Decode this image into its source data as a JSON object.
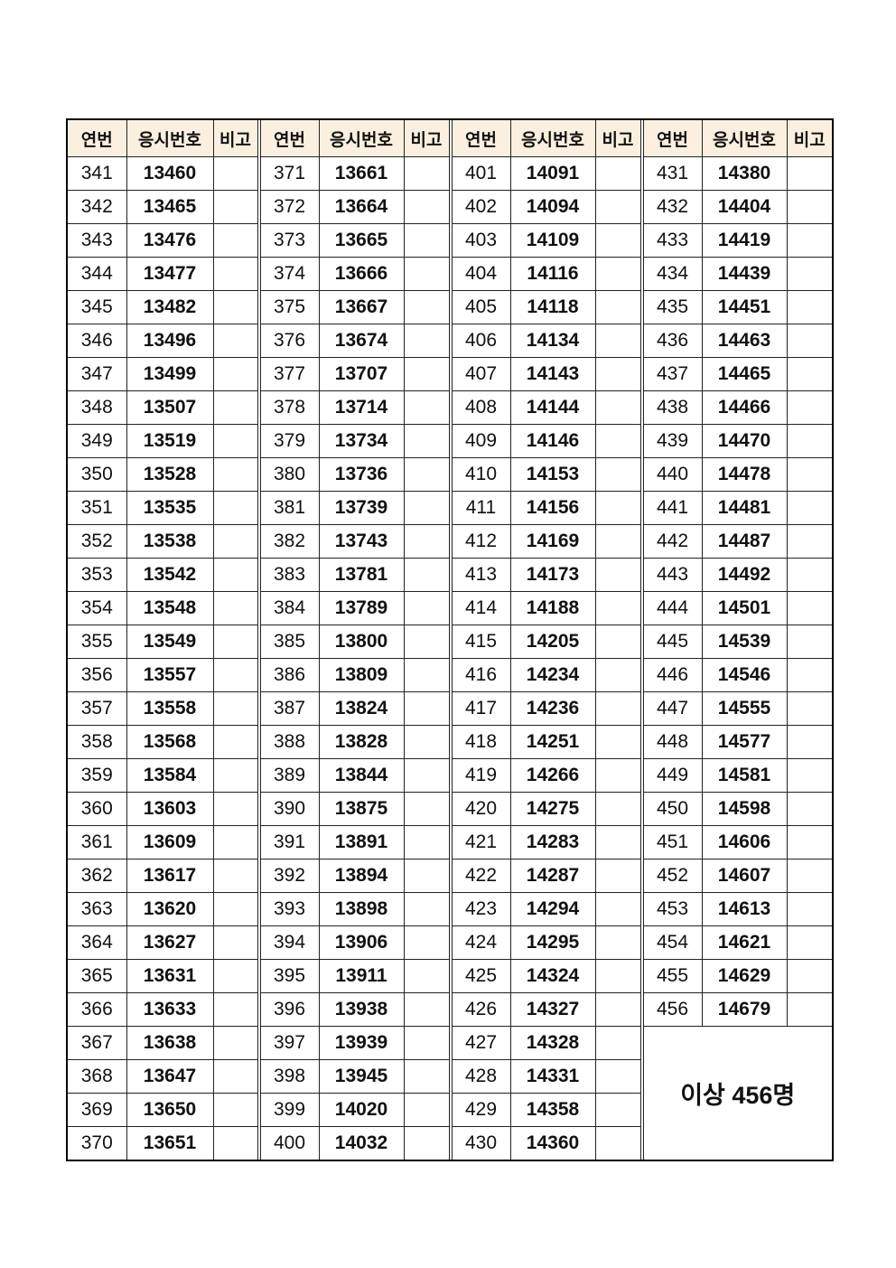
{
  "headers": {
    "seq": "연번",
    "exam_no": "응시번호",
    "note": "비고"
  },
  "groups": [
    {
      "rows": [
        [
          "341",
          "13460"
        ],
        [
          "342",
          "13465"
        ],
        [
          "343",
          "13476"
        ],
        [
          "344",
          "13477"
        ],
        [
          "345",
          "13482"
        ],
        [
          "346",
          "13496"
        ],
        [
          "347",
          "13499"
        ],
        [
          "348",
          "13507"
        ],
        [
          "349",
          "13519"
        ],
        [
          "350",
          "13528"
        ],
        [
          "351",
          "13535"
        ],
        [
          "352",
          "13538"
        ],
        [
          "353",
          "13542"
        ],
        [
          "354",
          "13548"
        ],
        [
          "355",
          "13549"
        ],
        [
          "356",
          "13557"
        ],
        [
          "357",
          "13558"
        ],
        [
          "358",
          "13568"
        ],
        [
          "359",
          "13584"
        ],
        [
          "360",
          "13603"
        ],
        [
          "361",
          "13609"
        ],
        [
          "362",
          "13617"
        ],
        [
          "363",
          "13620"
        ],
        [
          "364",
          "13627"
        ],
        [
          "365",
          "13631"
        ],
        [
          "366",
          "13633"
        ],
        [
          "367",
          "13638"
        ],
        [
          "368",
          "13647"
        ],
        [
          "369",
          "13650"
        ],
        [
          "370",
          "13651"
        ]
      ]
    },
    {
      "rows": [
        [
          "371",
          "13661"
        ],
        [
          "372",
          "13664"
        ],
        [
          "373",
          "13665"
        ],
        [
          "374",
          "13666"
        ],
        [
          "375",
          "13667"
        ],
        [
          "376",
          "13674"
        ],
        [
          "377",
          "13707"
        ],
        [
          "378",
          "13714"
        ],
        [
          "379",
          "13734"
        ],
        [
          "380",
          "13736"
        ],
        [
          "381",
          "13739"
        ],
        [
          "382",
          "13743"
        ],
        [
          "383",
          "13781"
        ],
        [
          "384",
          "13789"
        ],
        [
          "385",
          "13800"
        ],
        [
          "386",
          "13809"
        ],
        [
          "387",
          "13824"
        ],
        [
          "388",
          "13828"
        ],
        [
          "389",
          "13844"
        ],
        [
          "390",
          "13875"
        ],
        [
          "391",
          "13891"
        ],
        [
          "392",
          "13894"
        ],
        [
          "393",
          "13898"
        ],
        [
          "394",
          "13906"
        ],
        [
          "395",
          "13911"
        ],
        [
          "396",
          "13938"
        ],
        [
          "397",
          "13939"
        ],
        [
          "398",
          "13945"
        ],
        [
          "399",
          "14020"
        ],
        [
          "400",
          "14032"
        ]
      ]
    },
    {
      "rows": [
        [
          "401",
          "14091"
        ],
        [
          "402",
          "14094"
        ],
        [
          "403",
          "14109"
        ],
        [
          "404",
          "14116"
        ],
        [
          "405",
          "14118"
        ],
        [
          "406",
          "14134"
        ],
        [
          "407",
          "14143"
        ],
        [
          "408",
          "14144"
        ],
        [
          "409",
          "14146"
        ],
        [
          "410",
          "14153"
        ],
        [
          "411",
          "14156"
        ],
        [
          "412",
          "14169"
        ],
        [
          "413",
          "14173"
        ],
        [
          "414",
          "14188"
        ],
        [
          "415",
          "14205"
        ],
        [
          "416",
          "14234"
        ],
        [
          "417",
          "14236"
        ],
        [
          "418",
          "14251"
        ],
        [
          "419",
          "14266"
        ],
        [
          "420",
          "14275"
        ],
        [
          "421",
          "14283"
        ],
        [
          "422",
          "14287"
        ],
        [
          "423",
          "14294"
        ],
        [
          "424",
          "14295"
        ],
        [
          "425",
          "14324"
        ],
        [
          "426",
          "14327"
        ],
        [
          "427",
          "14328"
        ],
        [
          "428",
          "14331"
        ],
        [
          "429",
          "14358"
        ],
        [
          "430",
          "14360"
        ]
      ]
    },
    {
      "rows": [
        [
          "431",
          "14380"
        ],
        [
          "432",
          "14404"
        ],
        [
          "433",
          "14419"
        ],
        [
          "434",
          "14439"
        ],
        [
          "435",
          "14451"
        ],
        [
          "436",
          "14463"
        ],
        [
          "437",
          "14465"
        ],
        [
          "438",
          "14466"
        ],
        [
          "439",
          "14470"
        ],
        [
          "440",
          "14478"
        ],
        [
          "441",
          "14481"
        ],
        [
          "442",
          "14487"
        ],
        [
          "443",
          "14492"
        ],
        [
          "444",
          "14501"
        ],
        [
          "445",
          "14539"
        ],
        [
          "446",
          "14546"
        ],
        [
          "447",
          "14555"
        ],
        [
          "448",
          "14577"
        ],
        [
          "449",
          "14581"
        ],
        [
          "450",
          "14598"
        ],
        [
          "451",
          "14606"
        ],
        [
          "452",
          "14607"
        ],
        [
          "453",
          "14613"
        ],
        [
          "454",
          "14621"
        ],
        [
          "455",
          "14629"
        ],
        [
          "456",
          "14679"
        ]
      ]
    }
  ],
  "summary": "이상 456명"
}
